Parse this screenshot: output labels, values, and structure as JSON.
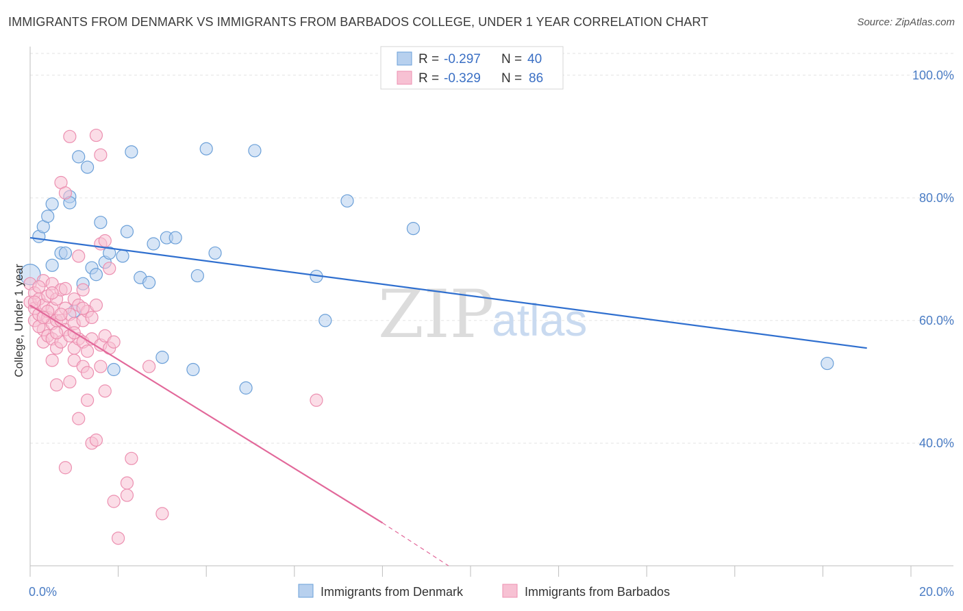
{
  "chart_data": {
    "type": "scatter",
    "title": "IMMIGRANTS FROM DENMARK VS IMMIGRANTS FROM BARBADOS COLLEGE, UNDER 1 YEAR CORRELATION CHART",
    "source": "Source: ZipAtlas.com",
    "xlabel": "",
    "ylabel": "College, Under 1 year",
    "xlim": [
      0,
      20
    ],
    "ylim": [
      20,
      104
    ],
    "x_tick_labels": [
      {
        "value": 0,
        "label": "0.0%"
      },
      {
        "value": 20,
        "label": "20.0%"
      }
    ],
    "y_tick_labels": [
      {
        "value": 40,
        "label": "40.0%"
      },
      {
        "value": 60,
        "label": "60.0%"
      },
      {
        "value": 80,
        "label": "80.0%"
      },
      {
        "value": 100,
        "label": "100.0%"
      }
    ],
    "legend": [
      {
        "r_label": "R = ",
        "r_value": "-0.297",
        "n_label": "N = ",
        "n_value": "40"
      },
      {
        "r_label": "R = ",
        "r_value": "-0.329",
        "n_label": "N = ",
        "n_value": "86"
      }
    ],
    "series": [
      {
        "name": "Immigrants from Denmark",
        "color": "#6a9fd8",
        "fill": "#b7d0ee",
        "line_color": "#2f6fcf",
        "trend": {
          "x0": 0,
          "y0": 73.5,
          "x1": 19.0,
          "y1": 55.5
        },
        "points": [
          [
            0.0,
            67.5
          ],
          [
            0.2,
            73.7
          ],
          [
            0.3,
            75.3
          ],
          [
            0.4,
            77.0
          ],
          [
            0.5,
            69.0
          ],
          [
            0.5,
            79.0
          ],
          [
            0.7,
            71.0
          ],
          [
            0.9,
            80.2
          ],
          [
            0.9,
            79.2
          ],
          [
            1.1,
            86.7
          ],
          [
            1.2,
            66.0
          ],
          [
            1.3,
            85.0
          ],
          [
            1.4,
            68.6
          ],
          [
            1.5,
            67.5
          ],
          [
            1.6,
            76.0
          ],
          [
            1.7,
            69.5
          ],
          [
            1.8,
            71.0
          ],
          [
            1.9,
            52.0
          ],
          [
            2.1,
            70.5
          ],
          [
            2.2,
            74.5
          ],
          [
            2.3,
            87.5
          ],
          [
            2.5,
            67.0
          ],
          [
            2.7,
            66.2
          ],
          [
            2.8,
            72.5
          ],
          [
            3.0,
            54.0
          ],
          [
            3.1,
            73.5
          ],
          [
            3.3,
            73.5
          ],
          [
            3.7,
            52.0
          ],
          [
            3.8,
            67.3
          ],
          [
            4.0,
            88.0
          ],
          [
            4.2,
            71.0
          ],
          [
            4.9,
            49.0
          ],
          [
            5.1,
            87.7
          ],
          [
            6.5,
            67.2
          ],
          [
            6.7,
            60.0
          ],
          [
            7.2,
            79.5
          ],
          [
            8.7,
            75.0
          ],
          [
            18.1,
            53.0
          ],
          [
            0.8,
            71.0
          ],
          [
            1.0,
            61.5
          ]
        ]
      },
      {
        "name": "Immigrants from Barbados",
        "color": "#ec8fb0",
        "fill": "#f7c1d3",
        "line_color": "#e2689a",
        "trend": {
          "x0": 0,
          "y0": 62.5,
          "x1": 8.0,
          "y1": 27.0
        },
        "trend_dashed": {
          "x0": 8.0,
          "y0": 27.0,
          "x1": 9.5,
          "y1": 20.0
        },
        "points": [
          [
            0.0,
            66.0
          ],
          [
            0.0,
            63.0
          ],
          [
            0.1,
            64.5
          ],
          [
            0.1,
            62.0
          ],
          [
            0.1,
            60.0
          ],
          [
            0.2,
            63.5
          ],
          [
            0.2,
            61.0
          ],
          [
            0.3,
            66.5
          ],
          [
            0.3,
            62.5
          ],
          [
            0.3,
            58.5
          ],
          [
            0.3,
            56.5
          ],
          [
            0.4,
            64.0
          ],
          [
            0.4,
            60.5
          ],
          [
            0.4,
            57.5
          ],
          [
            0.5,
            66.0
          ],
          [
            0.5,
            62.0
          ],
          [
            0.5,
            59.5
          ],
          [
            0.5,
            57.0
          ],
          [
            0.5,
            53.5
          ],
          [
            0.6,
            63.5
          ],
          [
            0.6,
            60.0
          ],
          [
            0.6,
            55.5
          ],
          [
            0.6,
            49.5
          ],
          [
            0.7,
            82.5
          ],
          [
            0.7,
            65.0
          ],
          [
            0.7,
            60.0
          ],
          [
            0.7,
            56.5
          ],
          [
            0.8,
            80.8
          ],
          [
            0.8,
            65.2
          ],
          [
            0.8,
            62.0
          ],
          [
            0.8,
            58.5
          ],
          [
            0.8,
            36.0
          ],
          [
            0.9,
            90.0
          ],
          [
            0.9,
            61.0
          ],
          [
            0.9,
            50.0
          ],
          [
            1.0,
            63.5
          ],
          [
            1.0,
            59.5
          ],
          [
            1.0,
            55.5
          ],
          [
            1.0,
            53.5
          ],
          [
            1.1,
            70.5
          ],
          [
            1.1,
            62.5
          ],
          [
            1.1,
            57.0
          ],
          [
            1.1,
            44.0
          ],
          [
            1.2,
            65.0
          ],
          [
            1.2,
            60.0
          ],
          [
            1.2,
            56.5
          ],
          [
            1.2,
            52.5
          ],
          [
            1.3,
            61.5
          ],
          [
            1.3,
            51.5
          ],
          [
            1.3,
            47.0
          ],
          [
            1.4,
            60.5
          ],
          [
            1.4,
            57.0
          ],
          [
            1.4,
            40.0
          ],
          [
            1.5,
            90.2
          ],
          [
            1.5,
            40.5
          ],
          [
            1.6,
            87.0
          ],
          [
            1.6,
            72.5
          ],
          [
            1.6,
            56.0
          ],
          [
            1.6,
            52.5
          ],
          [
            1.7,
            73.0
          ],
          [
            1.7,
            57.5
          ],
          [
            1.7,
            48.5
          ],
          [
            1.8,
            68.5
          ],
          [
            1.8,
            55.5
          ],
          [
            1.9,
            56.5
          ],
          [
            1.9,
            30.5
          ],
          [
            2.0,
            24.5
          ],
          [
            2.2,
            33.5
          ],
          [
            2.2,
            31.5
          ],
          [
            2.3,
            37.5
          ],
          [
            2.7,
            52.5
          ],
          [
            3.0,
            28.5
          ],
          [
            6.5,
            47.0
          ],
          [
            0.2,
            59.0
          ],
          [
            0.4,
            61.5
          ],
          [
            0.6,
            58.0
          ],
          [
            0.9,
            57.5
          ],
          [
            1.2,
            62.0
          ],
          [
            1.5,
            62.5
          ],
          [
            0.3,
            60.5
          ],
          [
            0.5,
            64.5
          ],
          [
            0.7,
            61.0
          ],
          [
            1.0,
            58.0
          ],
          [
            1.3,
            55.0
          ],
          [
            0.1,
            63.0
          ],
          [
            0.2,
            65.5
          ]
        ]
      }
    ]
  }
}
